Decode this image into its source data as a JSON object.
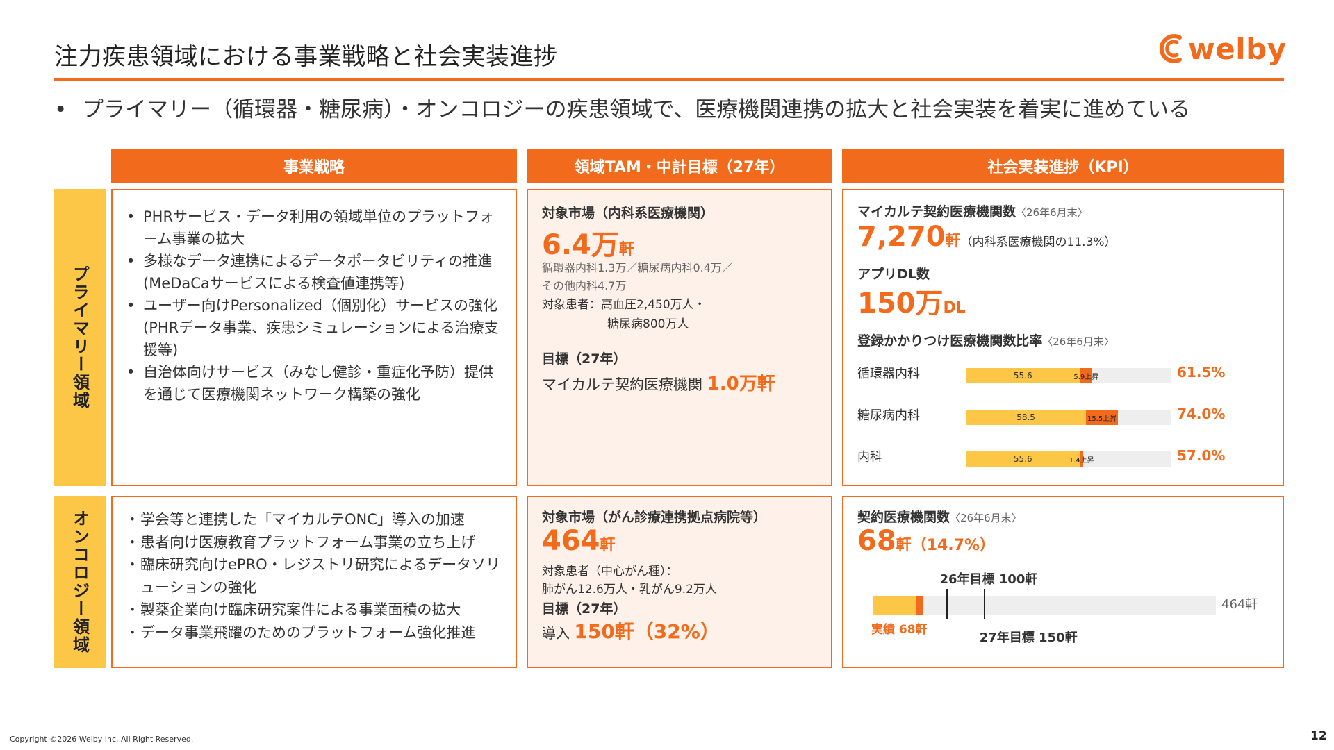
{
  "title": "注力疾患領域における事業戦略と社会実装進捗",
  "logo_text": "welby",
  "bullet": "プライマリー（循環器・糖尿病）・オンコロジーの疾患領域で、医療機関連携の拡大と社会実装を着実に進めている",
  "columns": {
    "strategy": "事業戦略",
    "tam": "領域TAM・中計目標（27年）",
    "kpi": "社会実装進捗（KPI）"
  },
  "rows": {
    "primary": "プライマリー領域",
    "oncology": "オンコロジー領域"
  },
  "primary": {
    "strategy": [
      "PHRサービス・データ利用の領域単位のプラットフォーム事業の拡大",
      "多様なデータ連携によるデータポータビリティの推進(MeDaCaサービスによる検査値連携等)",
      "ユーザー向けPersonalized（個別化）サービスの強化(PHRデータ事業、疾患シミュレーションによる治療支援等)",
      "自治体向けサービス（みなし健診・重症化予防）提供を通じて医療機関ネットワーク構築の強化"
    ],
    "tam": {
      "market_label": "対象市場（内科系医療機関）",
      "market_value": "6.4万",
      "market_unit": "軒",
      "breakdown1": "循環器内科1.3万／糖尿病内科0.4万／",
      "breakdown2": "その他内科4.7万",
      "patients1": "対象患者：高血圧2,450万人・",
      "patients2": "糖尿病800万人",
      "target_label": "目標（27年）",
      "target_text": "マイカルテ契約医療機関",
      "target_value": "1.0万軒"
    },
    "kpi": {
      "contracts_label": "マイカルテ契約医療機関数",
      "contracts_note": "〈26年6月末〉",
      "contracts_value": "7,270",
      "contracts_unit": "軒",
      "contracts_share": "（内科系医療機関の11.3%）",
      "dl_label": "アプリDL数",
      "dl_value": "150万",
      "dl_unit": "DL",
      "ratio_label": "登録かかりつけ医療機関数比率",
      "ratio_note": "〈26年6月末〉",
      "bars": [
        {
          "name": "循環器内科",
          "base": 55.6,
          "base_label": "55.6",
          "up": 5.9,
          "up_label": "5.9上昇",
          "total": "61.5%"
        },
        {
          "name": "糖尿病内科",
          "base": 58.5,
          "base_label": "58.5",
          "up": 15.5,
          "up_label": "15.5上昇",
          "total": "74.0%"
        },
        {
          "name": "内科",
          "base": 55.6,
          "base_label": "55.6",
          "up": 1.4,
          "up_label": "1.4上昇",
          "total": "57.0%"
        }
      ]
    }
  },
  "oncology": {
    "strategy": [
      "学会等と連携した「マイカルテONC」導入の加速",
      "患者向け医療教育プラットフォーム事業の立ち上げ",
      "臨床研究向けePRO・レジストリ研究によるデータソリューションの強化",
      "製薬企業向け臨床研究案件による事業面積の拡大",
      "データ事業飛躍のためのプラットフォーム強化推進"
    ],
    "tam": {
      "market_label": "対象市場（がん診療連携拠点病院等）",
      "market_value": "464",
      "market_unit": "軒",
      "patients1": "対象患者（中心がん種）：",
      "patients2": "肺がん12.6万人・乳がん9.2万人",
      "target_label": "目標（27年）",
      "target_prefix": "導入",
      "target_value": "150軒（32%）"
    },
    "kpi": {
      "contracts_label": "契約医療機関数",
      "contracts_note": "〈26年6月末〉",
      "contracts_value": "68",
      "contracts_unit": "軒",
      "contracts_share": "（14.7%）",
      "progress": {
        "actual": 68,
        "target_26": 100,
        "target_27": 150,
        "max": 464,
        "actual_label": "実績 68軒",
        "target_26_label": "26年目標 100軒",
        "target_27_label": "27年目標 150軒",
        "max_label": "464軒"
      }
    }
  },
  "footer": "Copyright ©2026 Welby Inc. All Right Reserved.",
  "page_number": "12",
  "colors": {
    "accent": "#f26b1d",
    "yellow": "#fcc746",
    "tint": "#fdf1ea"
  }
}
